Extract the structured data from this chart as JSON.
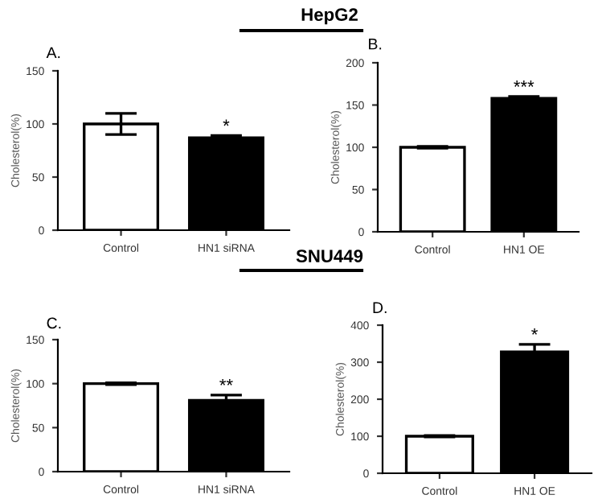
{
  "chart_data": [
    {
      "type": "bar",
      "title": "A.",
      "ylabel": "Cholesterol(%)",
      "categories": [
        "Control",
        "HN1 siRNA"
      ],
      "values": [
        100,
        87
      ],
      "errors": [
        10,
        2
      ],
      "colors": [
        "#ffffff",
        "#000000"
      ],
      "ylim": [
        0,
        150
      ],
      "yticks": [
        0,
        50,
        100,
        150
      ],
      "grid": false,
      "annotations": [
        "HepG2",
        {
          "text": "*",
          "x": "HN1 siRNA",
          "y": 89
        }
      ]
    },
    {
      "type": "bar",
      "title": "B.",
      "ylabel": "Cholesterol(%)",
      "categories": [
        "Control",
        "HN1 OE"
      ],
      "values": [
        100,
        158
      ],
      "errors": [
        1,
        2
      ],
      "colors": [
        "#ffffff",
        "#000000"
      ],
      "ylim": [
        0,
        200
      ],
      "yticks": [
        0,
        50,
        100,
        150,
        200
      ],
      "grid": false,
      "annotations": [
        {
          "text": "***",
          "x": "HN1 OE",
          "y": 160
        }
      ]
    },
    {
      "type": "bar",
      "title": "C.",
      "ylabel": "Cholesterol(%)",
      "categories": [
        "Control",
        "HN1 siRNA"
      ],
      "values": [
        100,
        81
      ],
      "errors": [
        1,
        6
      ],
      "colors": [
        "#ffffff",
        "#000000"
      ],
      "ylim": [
        0,
        150
      ],
      "yticks": [
        0,
        50,
        100,
        150
      ],
      "grid": false,
      "annotations": [
        "SNU449",
        {
          "text": "**",
          "x": "HN1 siRNA",
          "y": 87
        }
      ]
    },
    {
      "type": "bar",
      "title": "D.",
      "ylabel": "Cholesterol(%)",
      "categories": [
        "Control",
        "HN1 OE"
      ],
      "values": [
        100,
        328
      ],
      "errors": [
        2,
        20
      ],
      "colors": [
        "#ffffff",
        "#000000"
      ],
      "ylim": [
        0,
        400
      ],
      "yticks": [
        0,
        100,
        200,
        300,
        400
      ],
      "grid": false,
      "annotations": [
        {
          "text": "*",
          "x": "HN1 OE",
          "y": 348
        }
      ]
    }
  ]
}
